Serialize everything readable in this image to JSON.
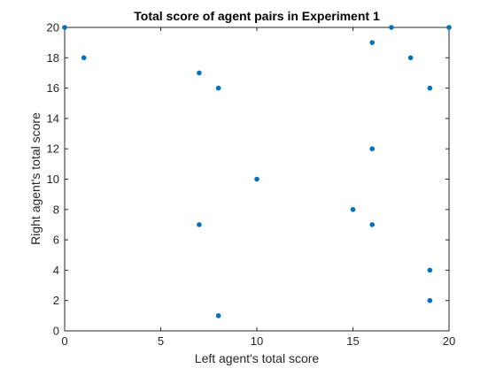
{
  "chart_data": {
    "type": "scatter",
    "title": "Total score of agent pairs in Experiment 1",
    "xlabel": "Left agent's total score",
    "ylabel": "Right agent's total score",
    "xlim": [
      0,
      20
    ],
    "ylim": [
      0,
      20
    ],
    "xticks": [
      0,
      5,
      10,
      15,
      20
    ],
    "yticks": [
      0,
      2,
      4,
      6,
      8,
      10,
      12,
      14,
      16,
      18,
      20
    ],
    "grid": false,
    "legend": "none",
    "marker_color": "#0072BD",
    "axis_color": "#262626",
    "series": [
      {
        "points": [
          {
            "x": 0,
            "y": 20
          },
          {
            "x": 1,
            "y": 18
          },
          {
            "x": 7,
            "y": 17
          },
          {
            "x": 8,
            "y": 16
          },
          {
            "x": 16,
            "y": 19
          },
          {
            "x": 17,
            "y": 20
          },
          {
            "x": 18,
            "y": 18
          },
          {
            "x": 20,
            "y": 20
          },
          {
            "x": 19,
            "y": 16
          },
          {
            "x": 16,
            "y": 12
          },
          {
            "x": 10,
            "y": 10
          },
          {
            "x": 15,
            "y": 8
          },
          {
            "x": 16,
            "y": 7
          },
          {
            "x": 7,
            "y": 7
          },
          {
            "x": 19,
            "y": 4
          },
          {
            "x": 19,
            "y": 2
          },
          {
            "x": 8,
            "y": 1
          }
        ]
      }
    ]
  }
}
